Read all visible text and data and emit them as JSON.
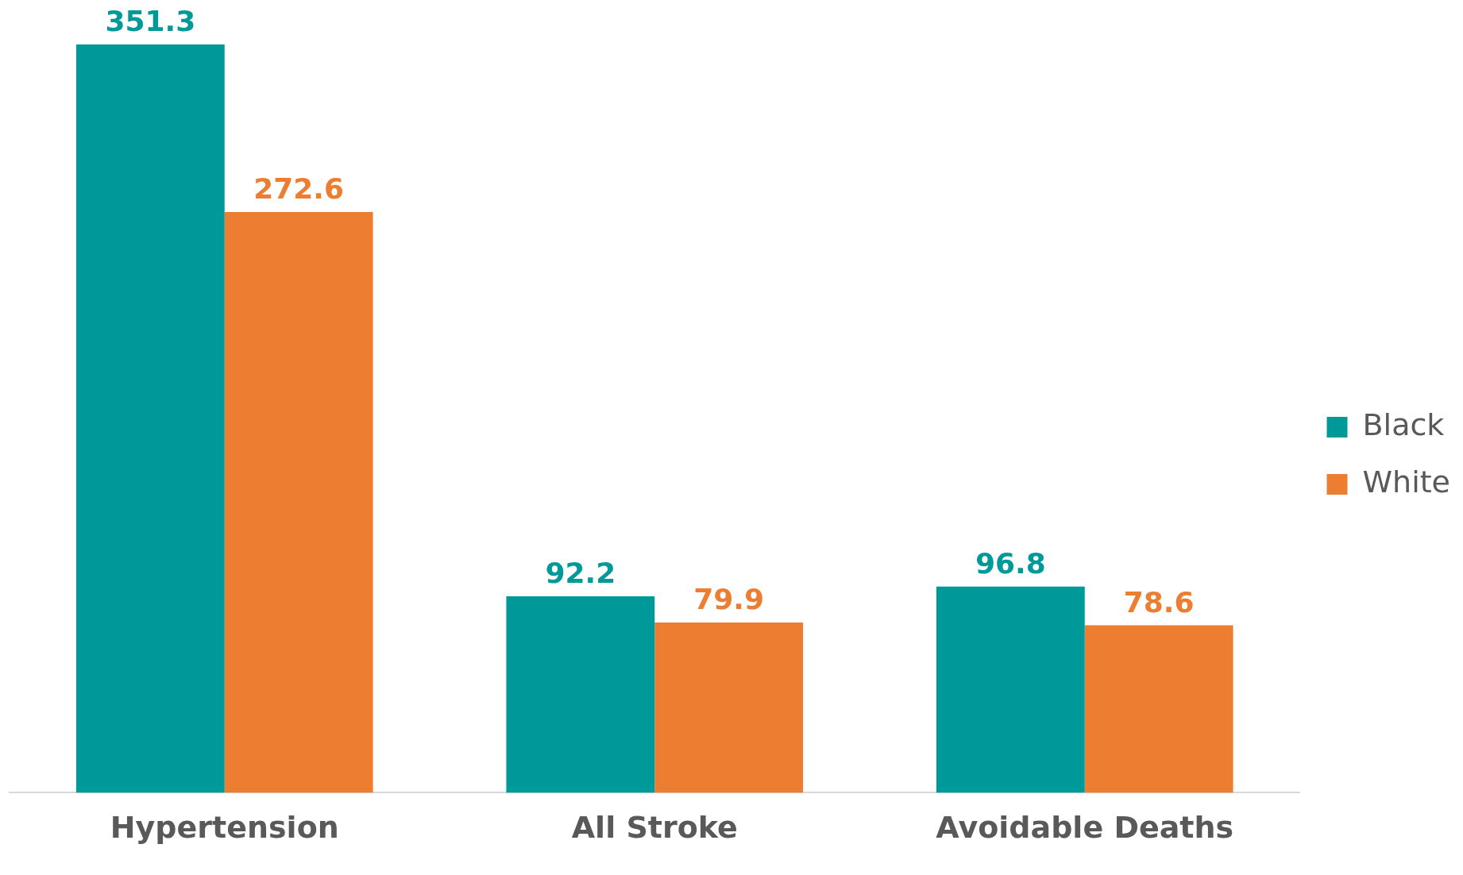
{
  "chart_data": {
    "type": "bar",
    "categories": [
      "Hypertension",
      "All Stroke",
      "Avoidable Deaths"
    ],
    "series": [
      {
        "name": "Black",
        "color": "#009999",
        "values": [
          351.3,
          92.2,
          96.8
        ]
      },
      {
        "name": "White",
        "color": "#ed7d31",
        "values": [
          272.6,
          79.9,
          78.6
        ]
      }
    ],
    "data_labels": true,
    "legend": "right",
    "grid": false
  }
}
